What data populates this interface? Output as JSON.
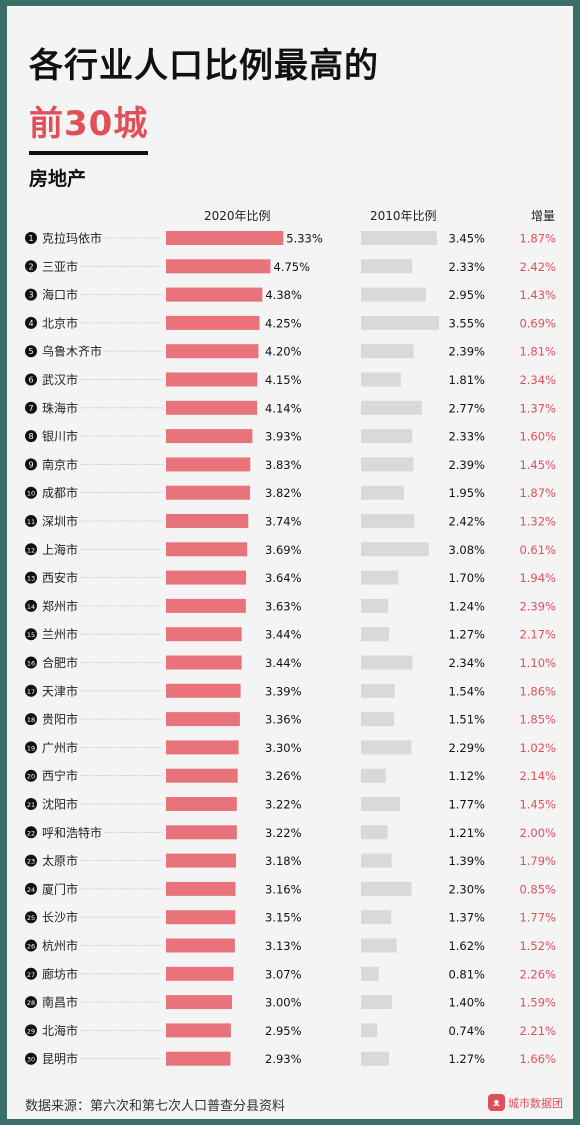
{
  "header": {
    "title_line1": "各行业人口比例最高的",
    "title_line2": "前30城",
    "subtitle": "房地产"
  },
  "columns": {
    "col2020": "2020年比例",
    "col2010": "2010年比例",
    "colinc": "增量"
  },
  "colors": {
    "bar2020": "#e8737b",
    "bar2010": "#d9d9d9",
    "increase": "#e0505b",
    "rank_circle": "#111111"
  },
  "chart_data": {
    "type": "bar",
    "categories": [
      "克拉玛依市",
      "三亚市",
      "海口市",
      "北京市",
      "乌鲁木齐市",
      "武汉市",
      "珠海市",
      "银川市",
      "南京市",
      "成都市",
      "深圳市",
      "上海市",
      "西安市",
      "郑州市",
      "兰州市",
      "合肥市",
      "天津市",
      "贵阳市",
      "广州市",
      "西宁市",
      "沈阳市",
      "呼和浩特市",
      "太原市",
      "厦门市",
      "长沙市",
      "杭州市",
      "廊坊市",
      "南昌市",
      "北海市",
      "昆明市"
    ],
    "series": [
      {
        "name": "2020年比例",
        "values": [
          5.33,
          4.75,
          4.38,
          4.25,
          4.2,
          4.15,
          4.14,
          3.93,
          3.83,
          3.82,
          3.74,
          3.69,
          3.64,
          3.63,
          3.44,
          3.44,
          3.39,
          3.36,
          3.3,
          3.26,
          3.22,
          3.22,
          3.18,
          3.16,
          3.15,
          3.13,
          3.07,
          3.0,
          2.95,
          2.93
        ]
      },
      {
        "name": "2010年比例",
        "values": [
          3.45,
          2.33,
          2.95,
          3.55,
          2.39,
          1.81,
          2.77,
          2.33,
          2.39,
          1.95,
          2.42,
          3.08,
          1.7,
          1.24,
          1.27,
          2.34,
          1.54,
          1.51,
          2.29,
          1.12,
          1.77,
          1.21,
          1.39,
          2.3,
          1.37,
          1.62,
          0.81,
          1.4,
          0.74,
          1.27
        ]
      },
      {
        "name": "增量",
        "values": [
          1.87,
          2.42,
          1.43,
          0.69,
          1.81,
          2.34,
          1.37,
          1.6,
          1.45,
          1.87,
          1.32,
          0.61,
          1.94,
          2.39,
          2.17,
          1.1,
          1.86,
          1.85,
          1.02,
          2.14,
          1.45,
          2.0,
          1.79,
          0.85,
          1.77,
          1.52,
          2.26,
          1.59,
          2.21,
          1.66
        ]
      }
    ],
    "unit": "%"
  },
  "footer": {
    "source": "数据来源：第六次和第七次人口普查分县资料",
    "brand": "城市数据团",
    "brand_icon": "cat-logo-icon"
  }
}
